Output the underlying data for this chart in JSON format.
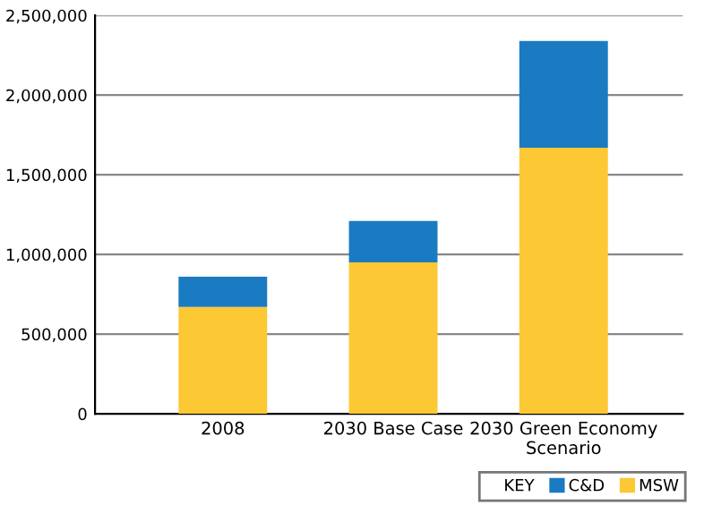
{
  "chart_data": {
    "type": "bar",
    "stacked": true,
    "categories": [
      "2008",
      "2030 Base Case",
      "2030 Green Economy\nScenario"
    ],
    "series": [
      {
        "name": "MSW",
        "color": "#fcc833",
        "values": [
          670000,
          950000,
          1670000
        ]
      },
      {
        "name": "C&D",
        "color": "#1b7bc2",
        "values": [
          190000,
          260000,
          670000
        ]
      }
    ],
    "ylim": [
      0,
      2500000
    ],
    "yticks": [
      {
        "value": 0,
        "label": "0"
      },
      {
        "value": 500000,
        "label": "500,000"
      },
      {
        "value": 1000000,
        "label": "1,000,000"
      },
      {
        "value": 1500000,
        "label": "1,500,000"
      },
      {
        "value": 2000000,
        "label": "2,000,000"
      },
      {
        "value": 2500000,
        "label": "2,500,000"
      }
    ],
    "grid": "y",
    "legend": "bottom right",
    "legend_title": "KEY"
  }
}
